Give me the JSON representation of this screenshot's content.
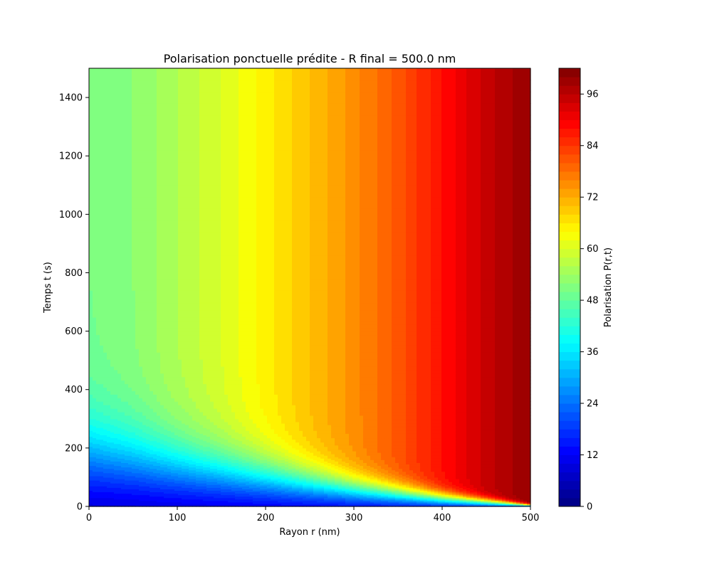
{
  "chart_data": {
    "type": "heatmap",
    "subtype": "filled-contour",
    "title": "Polarisation ponctuelle prédite - R final = 500.0 nm",
    "xlabel": "Rayon r (nm)",
    "ylabel": "Temps t (s)",
    "colorbar_label": "Polarisation P(r,t)",
    "colormap": "jet",
    "xlim": [
      0,
      500
    ],
    "ylim": [
      0,
      1500
    ],
    "clim": [
      0,
      102
    ],
    "contour_levels": 51,
    "x_ticks": [
      0,
      100,
      200,
      300,
      400,
      500
    ],
    "x_tick_labels": [
      "0",
      "100",
      "200",
      "300",
      "400",
      "500"
    ],
    "y_ticks": [
      0,
      200,
      400,
      600,
      800,
      1000,
      1200,
      1400
    ],
    "y_tick_labels": [
      "0",
      "200",
      "400",
      "600",
      "800",
      "1000",
      "1200",
      "1400"
    ],
    "colorbar_ticks": [
      0,
      12,
      24,
      36,
      48,
      60,
      72,
      84,
      96
    ],
    "colorbar_tick_labels": [
      "0",
      "12",
      "24",
      "36",
      "48",
      "60",
      "72",
      "84",
      "96"
    ],
    "grid": false,
    "steady_state_profile": {
      "r": [
        0,
        50,
        100,
        150,
        200,
        250,
        300,
        350,
        400,
        450,
        500
      ],
      "P": [
        50,
        52,
        56,
        60,
        65,
        70,
        75,
        81,
        88,
        95,
        100
      ]
    },
    "transient_front": {
      "r": [
        0,
        100,
        200,
        300,
        400,
        500
      ],
      "t_at_P_equals_30": [
        170,
        130,
        95,
        58,
        28,
        5
      ]
    }
  }
}
